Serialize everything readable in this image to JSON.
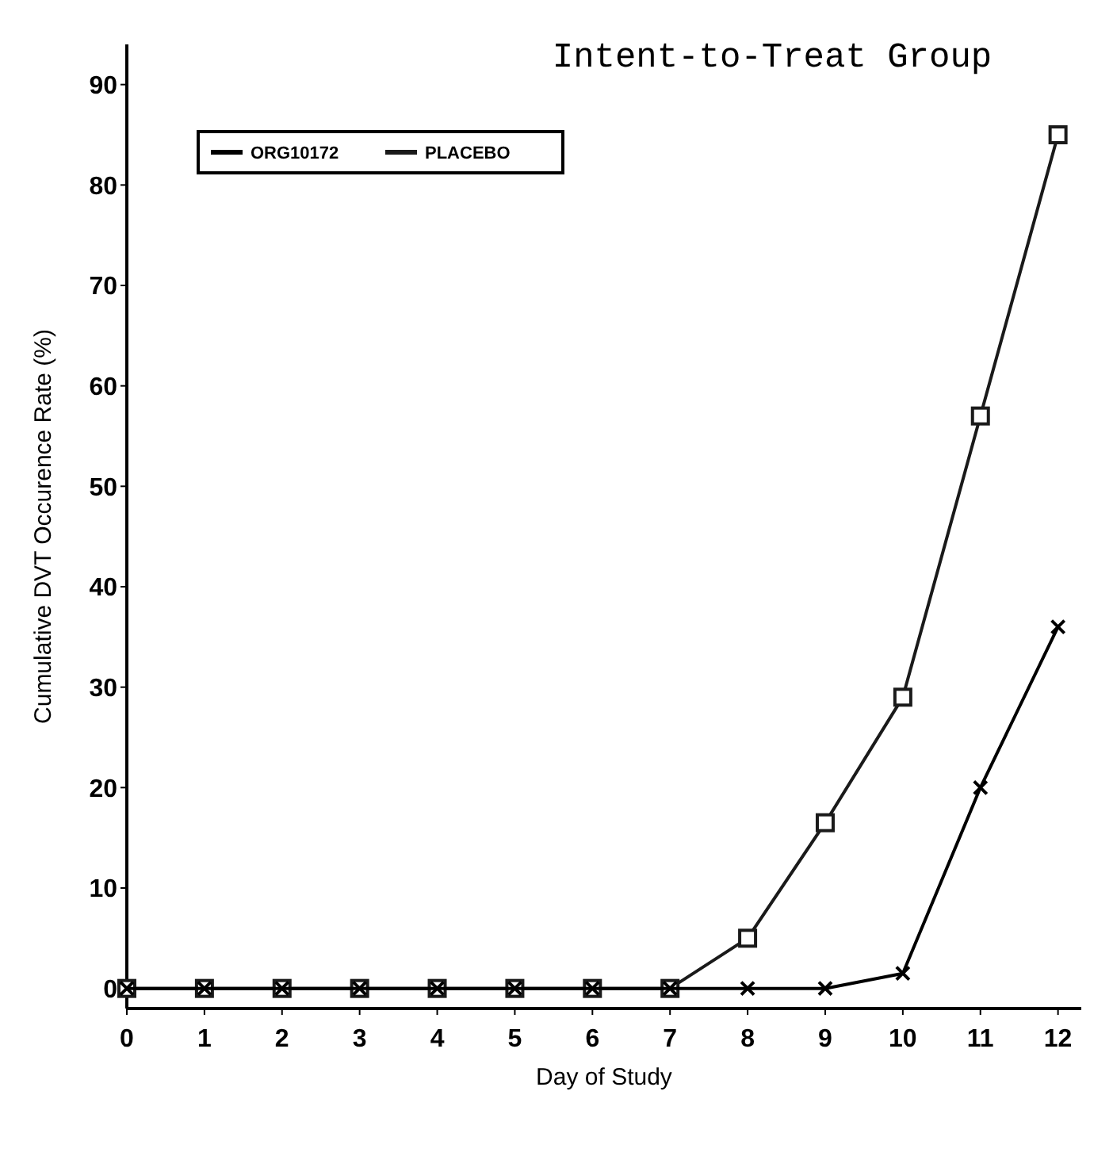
{
  "chart_data": {
    "type": "line",
    "title": "Intent-to-Treat Group",
    "xlabel": "Day of Study",
    "ylabel": "Cumulative DVT Occurence Rate (%)",
    "x": [
      0,
      1,
      2,
      3,
      4,
      5,
      6,
      7,
      8,
      9,
      10,
      11,
      12
    ],
    "series": [
      {
        "name": "ORG10172",
        "color": "#000000",
        "marker": "cross",
        "values": [
          0,
          0,
          0,
          0,
          0,
          0,
          0,
          0,
          0,
          0,
          1.5,
          20,
          36
        ]
      },
      {
        "name": "PLACEBO",
        "color": "#1a1a1a",
        "marker": "square",
        "values": [
          0,
          0,
          0,
          0,
          0,
          0,
          0,
          0,
          5,
          16.5,
          29,
          57,
          85
        ]
      }
    ],
    "xlim": [
      0,
      12.3
    ],
    "xticks": [
      0,
      1,
      2,
      3,
      4,
      5,
      6,
      7,
      8,
      9,
      10,
      11,
      12
    ],
    "ylim": [
      -2,
      94
    ],
    "yticks": [
      0,
      10,
      20,
      30,
      40,
      50,
      60,
      70,
      80,
      90
    ],
    "grid": false,
    "legend": "top left",
    "line_style": "solid"
  }
}
